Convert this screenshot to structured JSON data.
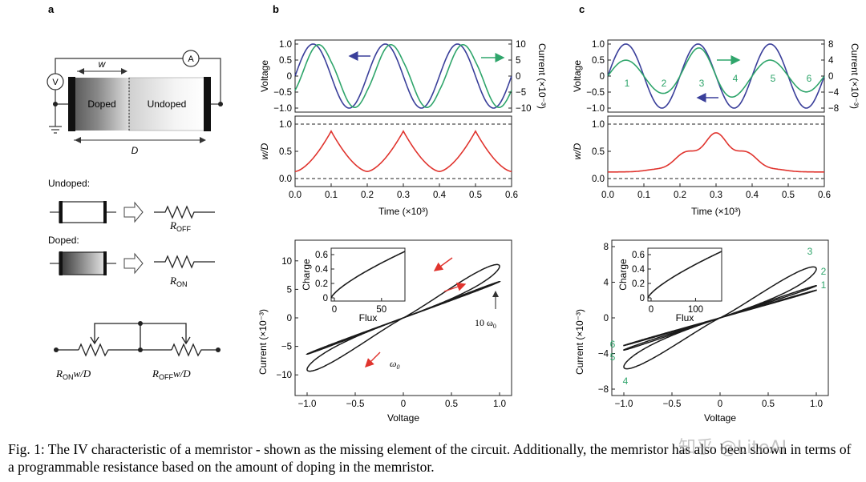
{
  "figure": {
    "panel_labels": [
      "a",
      "b",
      "c"
    ],
    "panel_a": {
      "w_label": "w",
      "D_label": "D",
      "doped": "Doped",
      "undoped": "Undoped",
      "voltmeter": "V",
      "ammeter": "A",
      "undoped_title": "Undoped:",
      "doped_title": "Doped:",
      "r_off": "R",
      "r_off_sub": "OFF",
      "r_on": "R",
      "r_on_sub": "ON",
      "series_left": "R",
      "series_left_sub": "ON",
      "series_left_suffix": "w/D",
      "series_right": "R",
      "series_right_sub": "OFF",
      "series_right_suffix": "w/D"
    },
    "axis_text": {
      "voltage": "Voltage",
      "current_right": "Current (×10⁻³)",
      "wD": "w/D",
      "time": "Time (×10³)",
      "current_left": "Current (×10⁻³)",
      "charge": "Charge",
      "flux": "Flux",
      "b_annot_10w0": "10 ω",
      "b_annot_w0": "ω",
      "zero_sub": "0"
    },
    "ticks": {
      "v_top": [
        "1.0",
        "0.5",
        "0",
        "−0.5",
        "−1.0"
      ],
      "b_current_right": [
        "10",
        "5",
        "0",
        "−5",
        "−10"
      ],
      "c_current_right": [
        "8",
        "4",
        "0",
        "−4",
        "−8"
      ],
      "wD": [
        "1.0",
        "0.5",
        "0.0"
      ],
      "time": [
        "0.0",
        "0.1",
        "0.2",
        "0.3",
        "0.4",
        "0.5",
        "0.6"
      ],
      "b_iv_y": [
        "10",
        "5",
        "0",
        "−5",
        "−10"
      ],
      "c_iv_y": [
        "8",
        "4",
        "0",
        "−4",
        "−8"
      ],
      "iv_x": [
        "−1.0",
        "−0.5",
        "0",
        "0.5",
        "1.0"
      ],
      "inset_y": [
        "0.6",
        "0.4",
        "0.2",
        "0"
      ],
      "b_inset_x": [
        "0",
        "50"
      ],
      "c_inset_x": [
        "0",
        "100"
      ]
    },
    "c_region_labels": [
      "1",
      "2",
      "3",
      "4",
      "5",
      "6"
    ],
    "c_loop_labels": [
      "3",
      "2",
      "1",
      "6",
      "5",
      "4"
    ]
  },
  "colors": {
    "voltage": "#3a3f9a",
    "current": "#2fa56b",
    "state": "#e0342e",
    "curve": "#1a1a1a",
    "arrow_red": "#e0342e"
  },
  "caption": "Fig. 1: The IV characteristic of a memristor - shown as the missing element of the circuit. Additionally, the memristor has also been shown in terms of a programmable resistance based on the amount of doping in the memristor.",
  "watermark": "知乎 @LiteAI"
}
